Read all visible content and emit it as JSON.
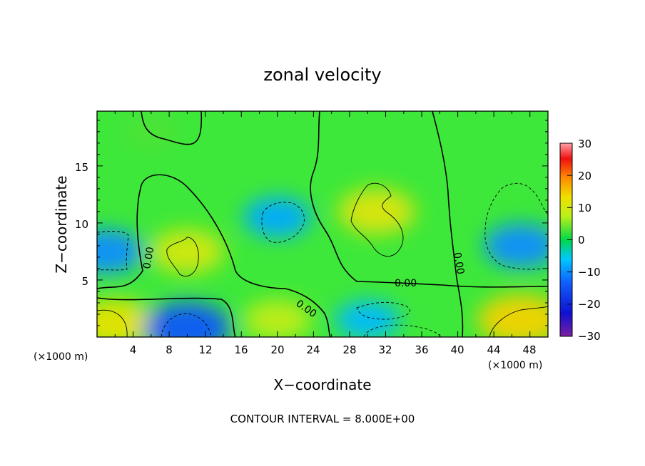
{
  "chart_data": {
    "type": "heatmap",
    "title": "zonal velocity",
    "xlabel": "X−coordinate",
    "ylabel": "Z−coordinate",
    "x_unit": "(×1000 m)",
    "y_unit": "(×1000 m)",
    "xlim": [
      0,
      50
    ],
    "ylim": [
      0,
      19.8
    ],
    "x_ticks": [
      "4",
      "8",
      "12",
      "16",
      "20",
      "24",
      "28",
      "32",
      "36",
      "40",
      "44",
      "48"
    ],
    "y_ticks": [
      "5",
      "10",
      "15"
    ],
    "colorbar": {
      "ticks": [
        "30",
        "20",
        "10",
        "0",
        "−10",
        "−20",
        "−30"
      ],
      "range": [
        -30,
        30
      ]
    },
    "contour_interval": "CONTOUR INTERVAL = 8.000E+00",
    "contour_labels": [
      "0.00",
      "0.00",
      "0.00",
      "0.00"
    ],
    "field_features": [
      {
        "x": 2,
        "z": 1.2,
        "value": 12
      },
      {
        "x": 10,
        "z": 0.8,
        "value": -14
      },
      {
        "x": 10,
        "z": 7.5,
        "value": 10
      },
      {
        "x": 20,
        "z": 10.5,
        "value": -8
      },
      {
        "x": 31,
        "z": 11,
        "value": 11
      },
      {
        "x": 30,
        "z": 1.5,
        "value": -7
      },
      {
        "x": 47,
        "z": 1.5,
        "value": 14
      },
      {
        "x": 47,
        "z": 8,
        "value": -10
      },
      {
        "x": 1,
        "z": 7.5,
        "value": -10
      },
      {
        "x": 6,
        "z": 18,
        "value": 3
      },
      {
        "x": 20,
        "z": 1.5,
        "value": 8
      }
    ]
  }
}
